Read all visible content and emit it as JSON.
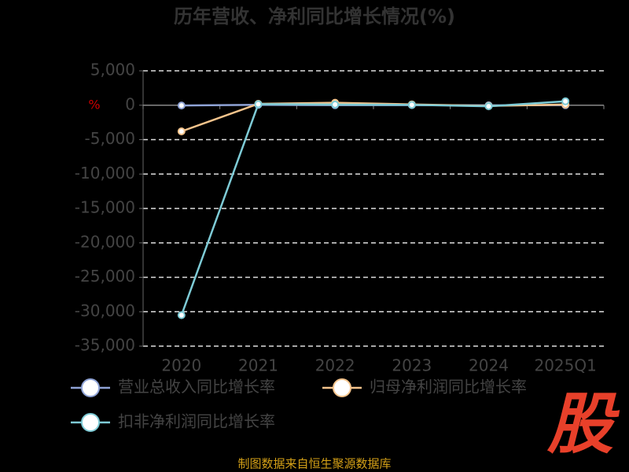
{
  "chart_data": {
    "type": "line",
    "title": "历年营收、净利同比增长情况(%)",
    "y_unit": "%",
    "categories": [
      "2020",
      "2021",
      "2022",
      "2023",
      "2024",
      "2025Q1"
    ],
    "series": [
      {
        "name": "营业总收入同比增长率",
        "color": "#8fa3d6",
        "values": [
          -44,
          59,
          10,
          15,
          -20,
          10
        ]
      },
      {
        "name": "归母净利润同比增长率",
        "color": "#f5c48c",
        "values": [
          -3800,
          200,
          357,
          120,
          -100,
          100
        ]
      },
      {
        "name": "扣非净利润同比增长率",
        "color": "#7ecbd6",
        "values": [
          -30500,
          150,
          100,
          50,
          -150,
          570
        ]
      }
    ],
    "ylim": [
      -35000,
      5000
    ],
    "yticks": [
      {
        "value": -35000,
        "label": "-35,000"
      },
      {
        "value": -30000,
        "label": "-30,000"
      },
      {
        "value": -25000,
        "label": "-25,000"
      },
      {
        "value": -20000,
        "label": "-20,000"
      },
      {
        "value": -15000,
        "label": "-15,000"
      },
      {
        "value": -10000,
        "label": "-10,000"
      },
      {
        "value": -5000,
        "label": "-5,000"
      },
      0,
      {
        "value": 5000,
        "label": "5,000"
      }
    ],
    "grid": true,
    "source": "制图数据来自恒生聚源数据库",
    "logo": "股"
  }
}
